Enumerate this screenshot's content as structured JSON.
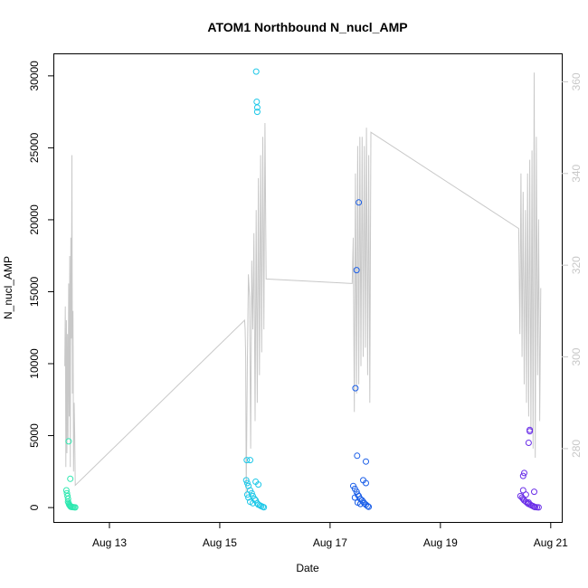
{
  "chart_data": {
    "type": "scatter",
    "title": "ATOM1 Northbound N_nucl_AMP",
    "xlabel": "Date",
    "ylabel": "N_nucl_AMP",
    "x_ticks": [
      "Aug 13",
      "Aug 15",
      "Aug 17",
      "Aug 19",
      "Aug 21"
    ],
    "x_tick_days": [
      13,
      15,
      17,
      19,
      21
    ],
    "xlim": [
      12.0,
      21.2
    ],
    "ylim": [
      -1000,
      31500
    ],
    "y_ticks": [
      0,
      5000,
      10000,
      15000,
      20000,
      25000,
      30000
    ],
    "y2lim": [
      264,
      366
    ],
    "y2_ticks": [
      280,
      300,
      320,
      340,
      360
    ],
    "legend": "none",
    "grid": false,
    "colors": {
      "line": "#c8c8c8",
      "group1": "#2ee8b0",
      "group2": "#1ec8e8",
      "group3": "#1a5ee8",
      "group4": "#6a2ee8"
    },
    "series": [
      {
        "kind": "points",
        "color_key": "group1",
        "x": [
          12.22,
          12.23,
          12.24,
          12.25,
          12.25,
          12.26,
          12.27,
          12.28,
          12.29,
          12.3,
          12.3,
          12.32,
          12.34,
          12.36,
          12.38,
          12.26,
          12.29
        ],
        "y": [
          1200,
          1000,
          800,
          600,
          400,
          300,
          200,
          150,
          100,
          80,
          50,
          40,
          30,
          20,
          10,
          4600,
          2000
        ]
      },
      {
        "kind": "points",
        "color_key": "group2",
        "x": [
          15.48,
          15.5,
          15.52,
          15.55,
          15.58,
          15.6,
          15.63,
          15.65,
          15.68,
          15.7,
          15.73,
          15.75,
          15.78,
          15.8,
          15.5,
          15.52,
          15.55,
          15.6,
          15.65,
          15.7,
          15.49,
          15.55,
          15.66,
          15.67,
          15.68,
          15.68
        ],
        "y": [
          1900,
          1700,
          1500,
          1200,
          1000,
          800,
          600,
          500,
          300,
          200,
          150,
          100,
          50,
          20,
          900,
          700,
          400,
          300,
          1800,
          1600,
          3300,
          3300,
          30300,
          28200,
          27800,
          27500
        ]
      },
      {
        "kind": "points",
        "color_key": "group3",
        "x": [
          17.42,
          17.45,
          17.48,
          17.5,
          17.52,
          17.55,
          17.58,
          17.6,
          17.62,
          17.65,
          17.68,
          17.7,
          17.45,
          17.5,
          17.55,
          17.6,
          17.65,
          17.52,
          17.48,
          17.46,
          17.49,
          17.65
        ],
        "y": [
          1500,
          1300,
          1100,
          900,
          800,
          600,
          500,
          400,
          300,
          200,
          100,
          50,
          700,
          350,
          250,
          1900,
          1700,
          21200,
          16500,
          8300,
          3600,
          3200
        ]
      },
      {
        "kind": "points",
        "color_key": "group4",
        "x": [
          20.45,
          20.48,
          20.5,
          20.52,
          20.55,
          20.58,
          20.6,
          20.63,
          20.65,
          20.68,
          20.7,
          20.72,
          20.75,
          20.78,
          20.5,
          20.55,
          20.6,
          20.7,
          20.62,
          20.62,
          20.6,
          20.52,
          20.5
        ],
        "y": [
          800,
          700,
          600,
          500,
          400,
          300,
          250,
          200,
          150,
          100,
          50,
          30,
          20,
          10,
          1200,
          900,
          350,
          1100,
          5400,
          5300,
          4500,
          2400,
          2200
        ]
      },
      {
        "kind": "line",
        "axis": "right",
        "color_key": "line",
        "x": [
          12.19,
          12.2,
          12.21,
          12.22,
          12.23,
          12.24,
          12.25,
          12.26,
          12.27,
          12.28,
          12.29,
          12.3,
          12.31,
          12.32,
          12.33,
          12.34,
          12.35,
          12.36,
          12.37,
          12.38,
          15.45,
          15.46,
          15.47,
          15.48,
          15.5,
          15.52,
          15.54,
          15.56,
          15.58,
          15.6,
          15.62,
          15.64,
          15.66,
          15.68,
          15.7,
          15.72,
          15.74,
          15.76,
          15.78,
          15.8,
          15.82,
          15.84,
          17.4,
          17.42,
          17.44,
          17.46,
          17.48,
          17.5,
          17.52,
          17.54,
          17.56,
          17.58,
          17.6,
          17.62,
          17.64,
          17.66,
          17.68,
          17.7,
          17.72,
          17.74,
          20.42,
          20.44,
          20.46,
          20.48,
          20.5,
          20.52,
          20.54,
          20.56,
          20.58,
          20.6,
          20.62,
          20.64,
          20.66,
          20.68,
          20.7,
          20.72,
          20.74,
          20.76,
          20.78,
          20.8,
          20.82
        ],
        "y": [
          298,
          311,
          276,
          308,
          279,
          305,
          282,
          316,
          287,
          322,
          276,
          326,
          304,
          344,
          292,
          310,
          275,
          290,
          283,
          272,
          308,
          306,
          300,
          270,
          298,
          318,
          313,
          280,
          321,
          306,
          327,
          286,
          332,
          290,
          339,
          296,
          344,
          301,
          348,
          306,
          351,
          317,
          316,
          326,
          288,
          340,
          292,
          346,
          294,
          348,
          298,
          348,
          300,
          346,
          302,
          350,
          296,
          344,
          290,
          349,
          328,
          305,
          340,
          300,
          336,
          294,
          332,
          290,
          340,
          287,
          343,
          284,
          345,
          280,
          362,
          278,
          348,
          296,
          330,
          286,
          315
        ]
      }
    ]
  }
}
